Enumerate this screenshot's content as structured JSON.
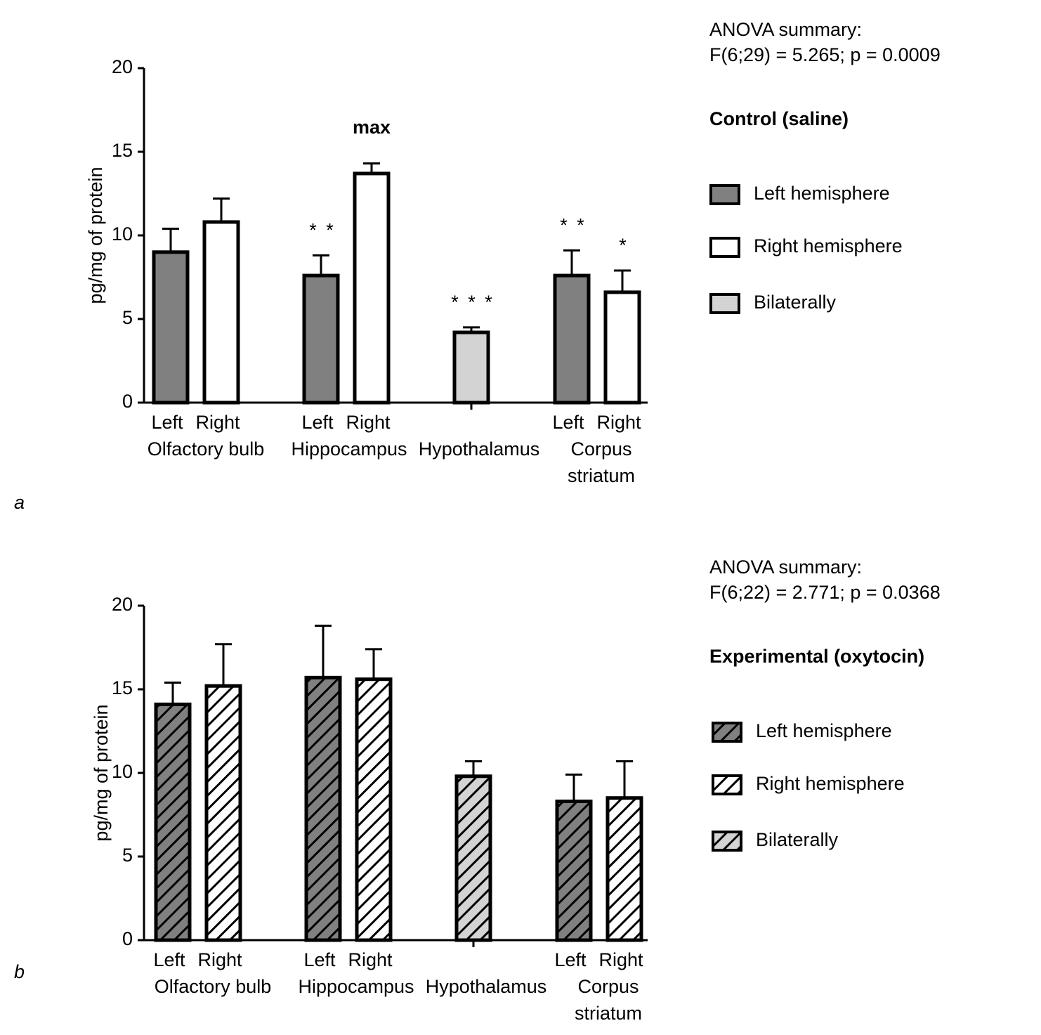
{
  "chart_data": [
    {
      "type": "bar",
      "panel_label": "a",
      "y_label": "pg/mg of protein",
      "anova_title": "ANOVA summary:",
      "anova_stat": "F(6;29) = 5.265; p = 0.0009",
      "legend_title": "Control (saline)",
      "hatched": false,
      "categories": [
        "Left",
        "Right",
        "Left",
        "Right",
        null,
        "Left",
        "Right"
      ],
      "group_labels": [
        [
          "Olfactory bulb"
        ],
        [
          "Hippocampus"
        ],
        [
          "Hypothalamus"
        ],
        [
          "Corpus",
          "striatum"
        ]
      ],
      "bar_annotations": [
        null,
        null,
        "* *",
        "max",
        "* * *",
        "* *",
        "*"
      ],
      "series": [
        {
          "name": "Left hemisphere",
          "color": "#808080",
          "values": [
            9.0,
            null,
            7.6,
            null,
            null,
            7.6,
            null
          ],
          "errors": [
            1.4,
            null,
            1.2,
            null,
            null,
            1.5,
            null
          ]
        },
        {
          "name": "Right hemisphere",
          "color": "#ffffff",
          "values": [
            null,
            10.8,
            null,
            13.7,
            null,
            null,
            6.6
          ],
          "errors": [
            null,
            1.4,
            null,
            0.6,
            null,
            null,
            1.3
          ]
        },
        {
          "name": "Bilaterally",
          "color": "#d3d3d3",
          "values": [
            null,
            null,
            null,
            null,
            4.2,
            null,
            null
          ],
          "errors": [
            null,
            null,
            null,
            null,
            0.3,
            null,
            null
          ]
        }
      ],
      "ylim": [
        0,
        20
      ],
      "yticks": [
        0,
        5,
        10,
        15,
        20
      ]
    },
    {
      "type": "bar",
      "panel_label": "b",
      "y_label": "pg/mg of protein",
      "anova_title": "ANOVA summary:",
      "anova_stat": "F(6;22) = 2.771; p = 0.0368",
      "legend_title": "Experimental (oxytocin)",
      "hatched": true,
      "categories": [
        "Left",
        "Right",
        "Left",
        "Right",
        null,
        "Left",
        "Right"
      ],
      "group_labels": [
        [
          "Olfactory bulb"
        ],
        [
          "Hippocampus"
        ],
        [
          "Hypothalamus"
        ],
        [
          "Corpus",
          "striatum"
        ]
      ],
      "series": [
        {
          "name": "Left hemisphere",
          "color": "#808080",
          "values": [
            14.1,
            null,
            15.7,
            null,
            null,
            8.3,
            null
          ],
          "errors": [
            1.3,
            null,
            3.1,
            null,
            null,
            1.6,
            null
          ]
        },
        {
          "name": "Right hemisphere",
          "color": "#ffffff",
          "values": [
            null,
            15.2,
            null,
            15.6,
            null,
            null,
            8.5
          ],
          "errors": [
            null,
            2.5,
            null,
            1.8,
            null,
            null,
            2.2
          ]
        },
        {
          "name": "Bilaterally",
          "color": "#d3d3d3",
          "values": [
            null,
            null,
            null,
            null,
            9.8,
            null,
            null
          ],
          "errors": [
            null,
            null,
            null,
            null,
            0.9,
            null,
            null
          ]
        }
      ],
      "ylim": [
        0,
        20
      ],
      "yticks": [
        0,
        5,
        10,
        15,
        20
      ]
    }
  ]
}
